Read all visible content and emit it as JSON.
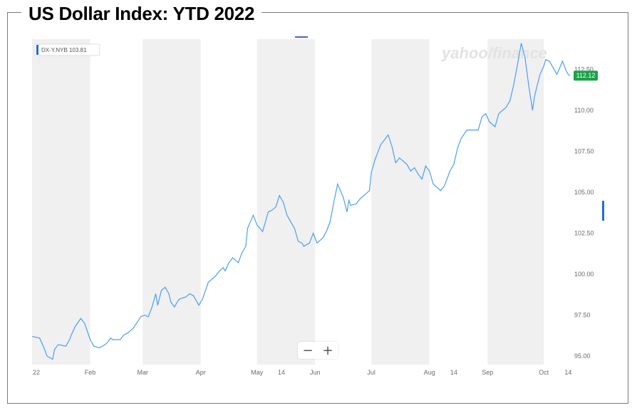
{
  "page": {
    "title": "US Dollar Index: YTD 2022"
  },
  "colors": {
    "line": "#4a9ff5",
    "band": "#f0f0f0",
    "price_tag": "#1aa34a",
    "text": "#6b6b6b",
    "watermark": "#e3e3e3"
  },
  "legend": {
    "label": "DX-Y.NYB 103.81"
  },
  "watermark": "yahoo/finance",
  "price_tag": {
    "label": "112.12",
    "value": 112.12
  },
  "zoom": {
    "minus": "−",
    "plus": "+"
  },
  "chart_data": {
    "type": "line",
    "title": "US Dollar Index: YTD 2022",
    "xlabel": "",
    "ylabel": "",
    "ylim": [
      94.5,
      114.0
    ],
    "y_ticks": [
      95.0,
      97.5,
      100.0,
      102.5,
      105.0,
      107.5,
      110.0,
      112.5
    ],
    "y_tick_labels": [
      "95.00",
      "97.50",
      "100.00",
      "102.50",
      "105.00",
      "107.50",
      "110.00",
      "112.50"
    ],
    "x_tick_labels": [
      {
        "label": "22",
        "day": 0
      },
      {
        "label": "Feb",
        "day": 31
      },
      {
        "label": "Mar",
        "day": 59
      },
      {
        "label": "Apr",
        "day": 90
      },
      {
        "label": "May",
        "day": 120
      },
      {
        "label": "14",
        "day": 133
      },
      {
        "label": "Jun",
        "day": 151
      },
      {
        "label": "Jul",
        "day": 181
      },
      {
        "label": "Aug",
        "day": 212
      },
      {
        "label": "14",
        "day": 225
      },
      {
        "label": "Sep",
        "day": 243
      },
      {
        "label": "Oct",
        "day": 273
      },
      {
        "label": "14",
        "day": 286
      }
    ],
    "grid": false,
    "legend_position": "top-left",
    "series": [
      {
        "name": "DX-Y.NYB",
        "x": [
          0,
          4,
          6,
          8,
          11,
          12,
          14,
          18,
          20,
          21,
          23,
          26,
          28,
          31,
          33,
          36,
          39,
          40,
          42,
          43,
          47,
          49,
          51,
          54,
          58,
          60,
          62,
          64,
          66,
          67,
          69,
          71,
          73,
          74,
          76,
          78,
          79,
          82,
          84,
          86,
          88,
          89,
          91,
          94,
          96,
          98,
          100,
          102,
          103,
          105,
          107,
          110,
          112,
          114,
          115,
          118,
          120,
          123,
          126,
          128,
          130,
          132,
          134,
          136,
          138,
          140,
          142,
          144,
          145,
          148,
          150,
          152,
          155,
          157,
          159,
          161,
          163,
          166,
          168,
          169,
          170,
          173,
          175,
          178,
          180,
          181,
          183,
          186,
          188,
          190,
          192,
          194,
          196,
          199,
          200,
          202,
          204,
          206,
          208,
          210,
          212,
          214,
          216,
          218,
          220,
          223,
          225,
          227,
          229,
          232,
          235,
          238,
          240,
          242,
          244,
          247,
          249,
          251,
          253,
          255,
          257,
          259,
          261,
          263,
          265,
          267,
          268,
          269,
          271,
          273,
          274,
          276,
          278,
          280,
          283,
          285,
          286,
          287
        ],
        "values": [
          96.2,
          96.1,
          95.6,
          95.0,
          94.8,
          95.4,
          95.7,
          95.6,
          96.0,
          96.3,
          96.8,
          97.3,
          97.0,
          96.0,
          95.6,
          95.5,
          95.7,
          95.8,
          96.1,
          96.0,
          96.0,
          96.3,
          96.4,
          96.7,
          97.4,
          97.5,
          97.4,
          98.0,
          98.8,
          98.1,
          99.0,
          99.2,
          98.8,
          98.3,
          98.0,
          98.4,
          98.5,
          98.6,
          98.8,
          98.7,
          98.3,
          98.1,
          98.5,
          99.5,
          99.7,
          99.9,
          100.2,
          100.4,
          100.2,
          100.7,
          101.0,
          100.7,
          101.3,
          101.7,
          102.8,
          103.6,
          103.0,
          102.6,
          103.8,
          103.9,
          104.1,
          104.8,
          104.4,
          103.6,
          103.2,
          102.8,
          102.0,
          101.9,
          101.7,
          101.9,
          102.5,
          101.9,
          102.2,
          102.6,
          103.2,
          104.4,
          105.5,
          104.7,
          103.8,
          104.5,
          104.2,
          104.3,
          104.6,
          104.9,
          105.1,
          106.2,
          107.0,
          107.9,
          108.2,
          108.5,
          107.8,
          106.8,
          107.1,
          106.8,
          106.7,
          106.3,
          106.5,
          106.1,
          105.8,
          106.6,
          106.3,
          105.5,
          105.3,
          105.1,
          105.4,
          106.3,
          106.7,
          107.7,
          108.3,
          108.8,
          108.8,
          108.8,
          109.6,
          109.8,
          109.3,
          109.0,
          109.8,
          110.0,
          110.2,
          110.6,
          111.6,
          112.8,
          114.1,
          113.2,
          111.5,
          110.0,
          110.8,
          111.3,
          112.2,
          112.7,
          113.1,
          113.0,
          112.6,
          112.2,
          113.0,
          112.4,
          112.2,
          112.12
        ]
      }
    ]
  }
}
